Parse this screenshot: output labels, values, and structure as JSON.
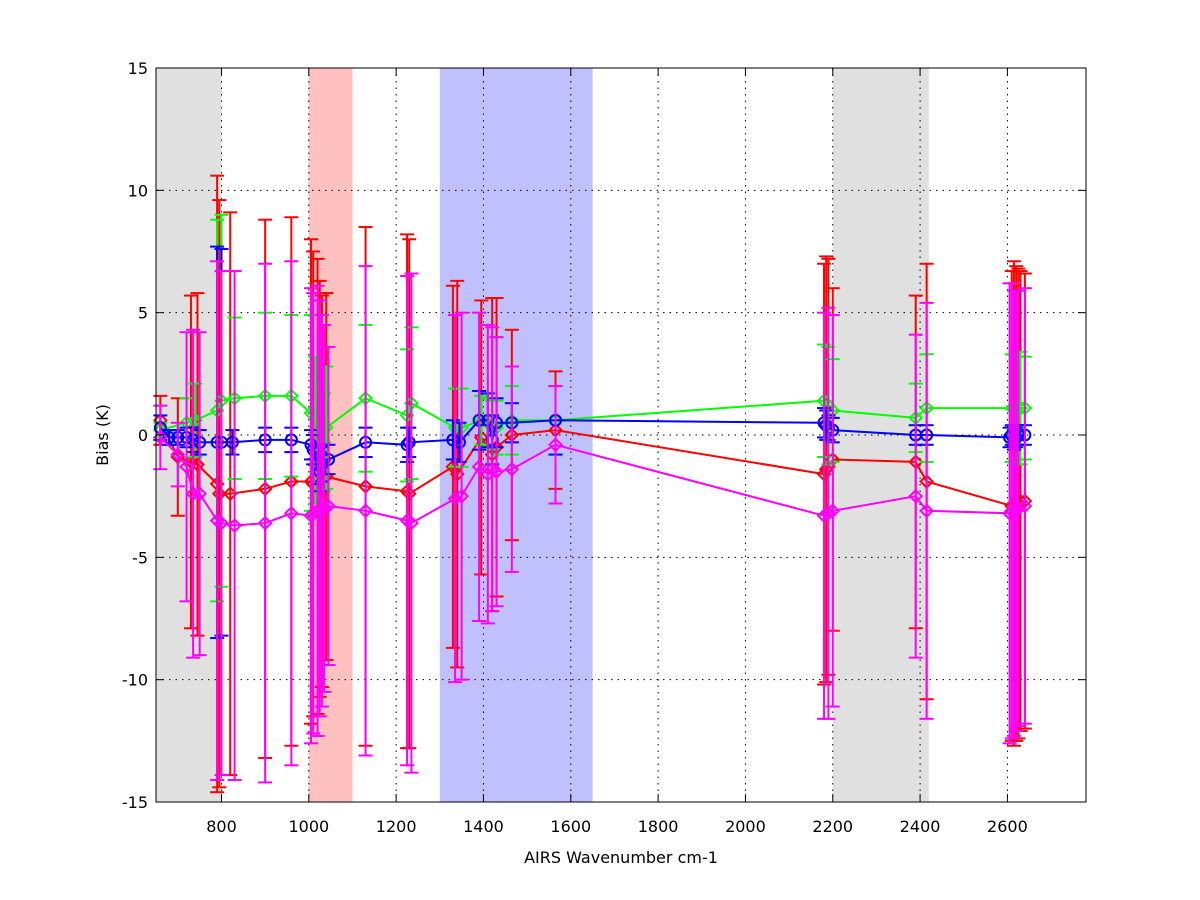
{
  "chart_data": {
    "type": "scatter",
    "xlabel": "AIRS Wavenumber cm-1",
    "ylabel": "Bias (K)",
    "xlim": [
      650,
      2780
    ],
    "ylim": [
      -15,
      15
    ],
    "xticks": [
      800,
      1000,
      1200,
      1400,
      1600,
      1800,
      2000,
      2200,
      2400,
      2600
    ],
    "yticks": [
      -15,
      -10,
      -5,
      0,
      5,
      10,
      15
    ],
    "grid": true,
    "bands": [
      {
        "x0": 650,
        "x1": 800,
        "color": "#e0e0e0"
      },
      {
        "x0": 1000,
        "x1": 1100,
        "color": "#ffc0c0"
      },
      {
        "x0": 1300,
        "x1": 1650,
        "color": "#c0c0ff"
      },
      {
        "x0": 2200,
        "x1": 2420,
        "color": "#e0e0e0"
      }
    ],
    "series": [
      {
        "color": "#ff0000",
        "x": [
          660,
          700,
          730,
          745,
          790,
          795,
          820,
          900,
          960,
          1005,
          1010,
          1020,
          1025,
          1030,
          1040,
          1130,
          1225,
          1230,
          1330,
          1340,
          1395,
          1420,
          1430,
          1465,
          1565,
          2180,
          2185,
          2190,
          2200,
          2390,
          2415,
          2610,
          2615,
          2620,
          2625,
          2630,
          2640
        ],
        "y": [
          0.6,
          -0.9,
          -1.1,
          -1.2,
          -2.0,
          -2.4,
          -2.4,
          -2.2,
          -1.9,
          -1.9,
          -2.0,
          -2.1,
          -2.2,
          -2.3,
          -1.7,
          -2.1,
          -2.3,
          -2.4,
          -1.3,
          -1.6,
          -0.1,
          -0.8,
          -0.5,
          0.0,
          0.2,
          -1.6,
          -1.4,
          -1.3,
          -1.0,
          -1.1,
          -1.9,
          -2.9,
          -2.8,
          -2.8,
          -2.8,
          -2.7,
          -2.7
        ],
        "err": [
          1.0,
          2.4,
          6.8,
          7.0,
          12.6,
          12.0,
          11.5,
          11.0,
          10.8,
          9.9,
          9.5,
          9.3,
          8.5,
          8.0,
          7.5,
          10.6,
          10.5,
          10.4,
          7.4,
          7.9,
          5.6,
          6.4,
          6.1,
          4.3,
          2.4,
          8.6,
          8.7,
          8.5,
          7.0,
          6.8,
          8.9,
          9.6,
          9.9,
          9.7,
          9.6,
          9.4,
          9.3
        ]
      },
      {
        "color": "#00ff00",
        "x": [
          660,
          720,
          740,
          790,
          800,
          830,
          900,
          960,
          1005,
          1015,
          1025,
          1035,
          1040,
          1130,
          1225,
          1235,
          1335,
          1350,
          1395,
          1410,
          1420,
          1430,
          1465,
          1565,
          2180,
          2190,
          2200,
          2390,
          2415,
          2610,
          2620,
          2630,
          2640
        ],
        "y": [
          0.2,
          0.5,
          0.6,
          1.0,
          1.4,
          1.5,
          1.6,
          1.6,
          0.9,
          0.2,
          0.0,
          -0.3,
          0.3,
          1.5,
          0.8,
          1.3,
          0.3,
          0.3,
          0.6,
          0.5,
          0.4,
          0.3,
          0.6,
          0.6,
          1.4,
          1.2,
          1.0,
          0.7,
          1.1,
          1.1,
          1.0,
          1.1,
          1.1
        ],
        "err": [
          0.3,
          1.0,
          1.5,
          7.8,
          7.6,
          3.3,
          3.4,
          3.3,
          4.0,
          3.0,
          2.2,
          2.0,
          2.5,
          3.0,
          2.7,
          3.1,
          1.6,
          1.6,
          1.0,
          1.0,
          1.0,
          1.1,
          1.4,
          1.4,
          2.3,
          2.4,
          2.1,
          1.4,
          2.2,
          2.2,
          2.2,
          2.3,
          2.1
        ]
      },
      {
        "color": "#0000ff",
        "x": [
          660,
          680,
          700,
          720,
          735,
          750,
          790,
          800,
          825,
          900,
          960,
          1005,
          1010,
          1020,
          1025,
          1030,
          1035,
          1045,
          1130,
          1225,
          1230,
          1330,
          1345,
          1390,
          1410,
          1420,
          1430,
          1465,
          1565,
          2180,
          2185,
          2190,
          2200,
          2390,
          2415,
          2605,
          2610,
          2615,
          2620,
          2625,
          2640
        ],
        "y": [
          0.3,
          -0.1,
          -0.1,
          -0.1,
          -0.2,
          -0.3,
          -0.3,
          -0.3,
          -0.3,
          -0.2,
          -0.2,
          -0.4,
          -0.6,
          -1.2,
          -1.5,
          -1.2,
          -1.0,
          -1.0,
          -0.3,
          -0.4,
          -0.3,
          -0.2,
          -0.3,
          0.6,
          0.6,
          -0.2,
          0.5,
          0.5,
          0.6,
          0.5,
          0.4,
          0.3,
          0.2,
          0.0,
          0.0,
          -0.1,
          0.0,
          -0.2,
          -0.1,
          0.0,
          0.0
        ],
        "err": [
          0.5,
          0.3,
          0.3,
          0.4,
          0.5,
          0.5,
          8.0,
          7.9,
          0.5,
          0.5,
          0.5,
          0.6,
          0.6,
          0.8,
          0.8,
          0.7,
          0.6,
          0.6,
          0.6,
          0.7,
          0.6,
          0.8,
          0.8,
          1.2,
          1.1,
          1.0,
          1.0,
          0.8,
          1.4,
          0.6,
          0.6,
          0.5,
          0.5,
          0.4,
          0.4,
          0.4,
          0.4,
          0.4,
          0.4,
          0.4,
          0.4
        ]
      },
      {
        "color": "#ff00ff",
        "x": [
          660,
          700,
          720,
          735,
          750,
          790,
          800,
          830,
          900,
          960,
          1005,
          1010,
          1020,
          1025,
          1030,
          1035,
          1045,
          1130,
          1225,
          1235,
          1335,
          1350,
          1390,
          1410,
          1420,
          1430,
          1465,
          1565,
          2180,
          2190,
          2200,
          2390,
          2415,
          2605,
          2610,
          2615,
          2620,
          2625,
          2640
        ],
        "y": [
          -0.1,
          -0.8,
          -1.3,
          -2.4,
          -2.4,
          -3.5,
          -3.6,
          -3.7,
          -3.6,
          -3.2,
          -3.3,
          -3.2,
          -3.1,
          -3.0,
          -3.1,
          -3.0,
          -2.9,
          -3.1,
          -3.5,
          -3.6,
          -2.6,
          -2.5,
          -1.3,
          -1.6,
          -1.4,
          -1.5,
          -1.4,
          -0.4,
          -3.3,
          -3.2,
          -3.1,
          -2.5,
          -3.1,
          -3.2,
          -3.1,
          -3.2,
          -3.1,
          -3.0,
          -2.9
        ],
        "err": [
          1.3,
          1.3,
          5.5,
          6.7,
          6.6,
          10.6,
          10.3,
          10.4,
          10.6,
          10.3,
          9.3,
          9.0,
          9.2,
          8.5,
          8.0,
          7.5,
          6.5,
          10.0,
          10.0,
          10.2,
          7.5,
          7.5,
          6.3,
          6.1,
          5.8,
          5.5,
          4.2,
          2.4,
          8.3,
          8.4,
          8.0,
          6.6,
          8.5,
          9.4,
          9.3,
          9.1,
          9.0,
          8.9,
          8.9
        ]
      }
    ]
  }
}
